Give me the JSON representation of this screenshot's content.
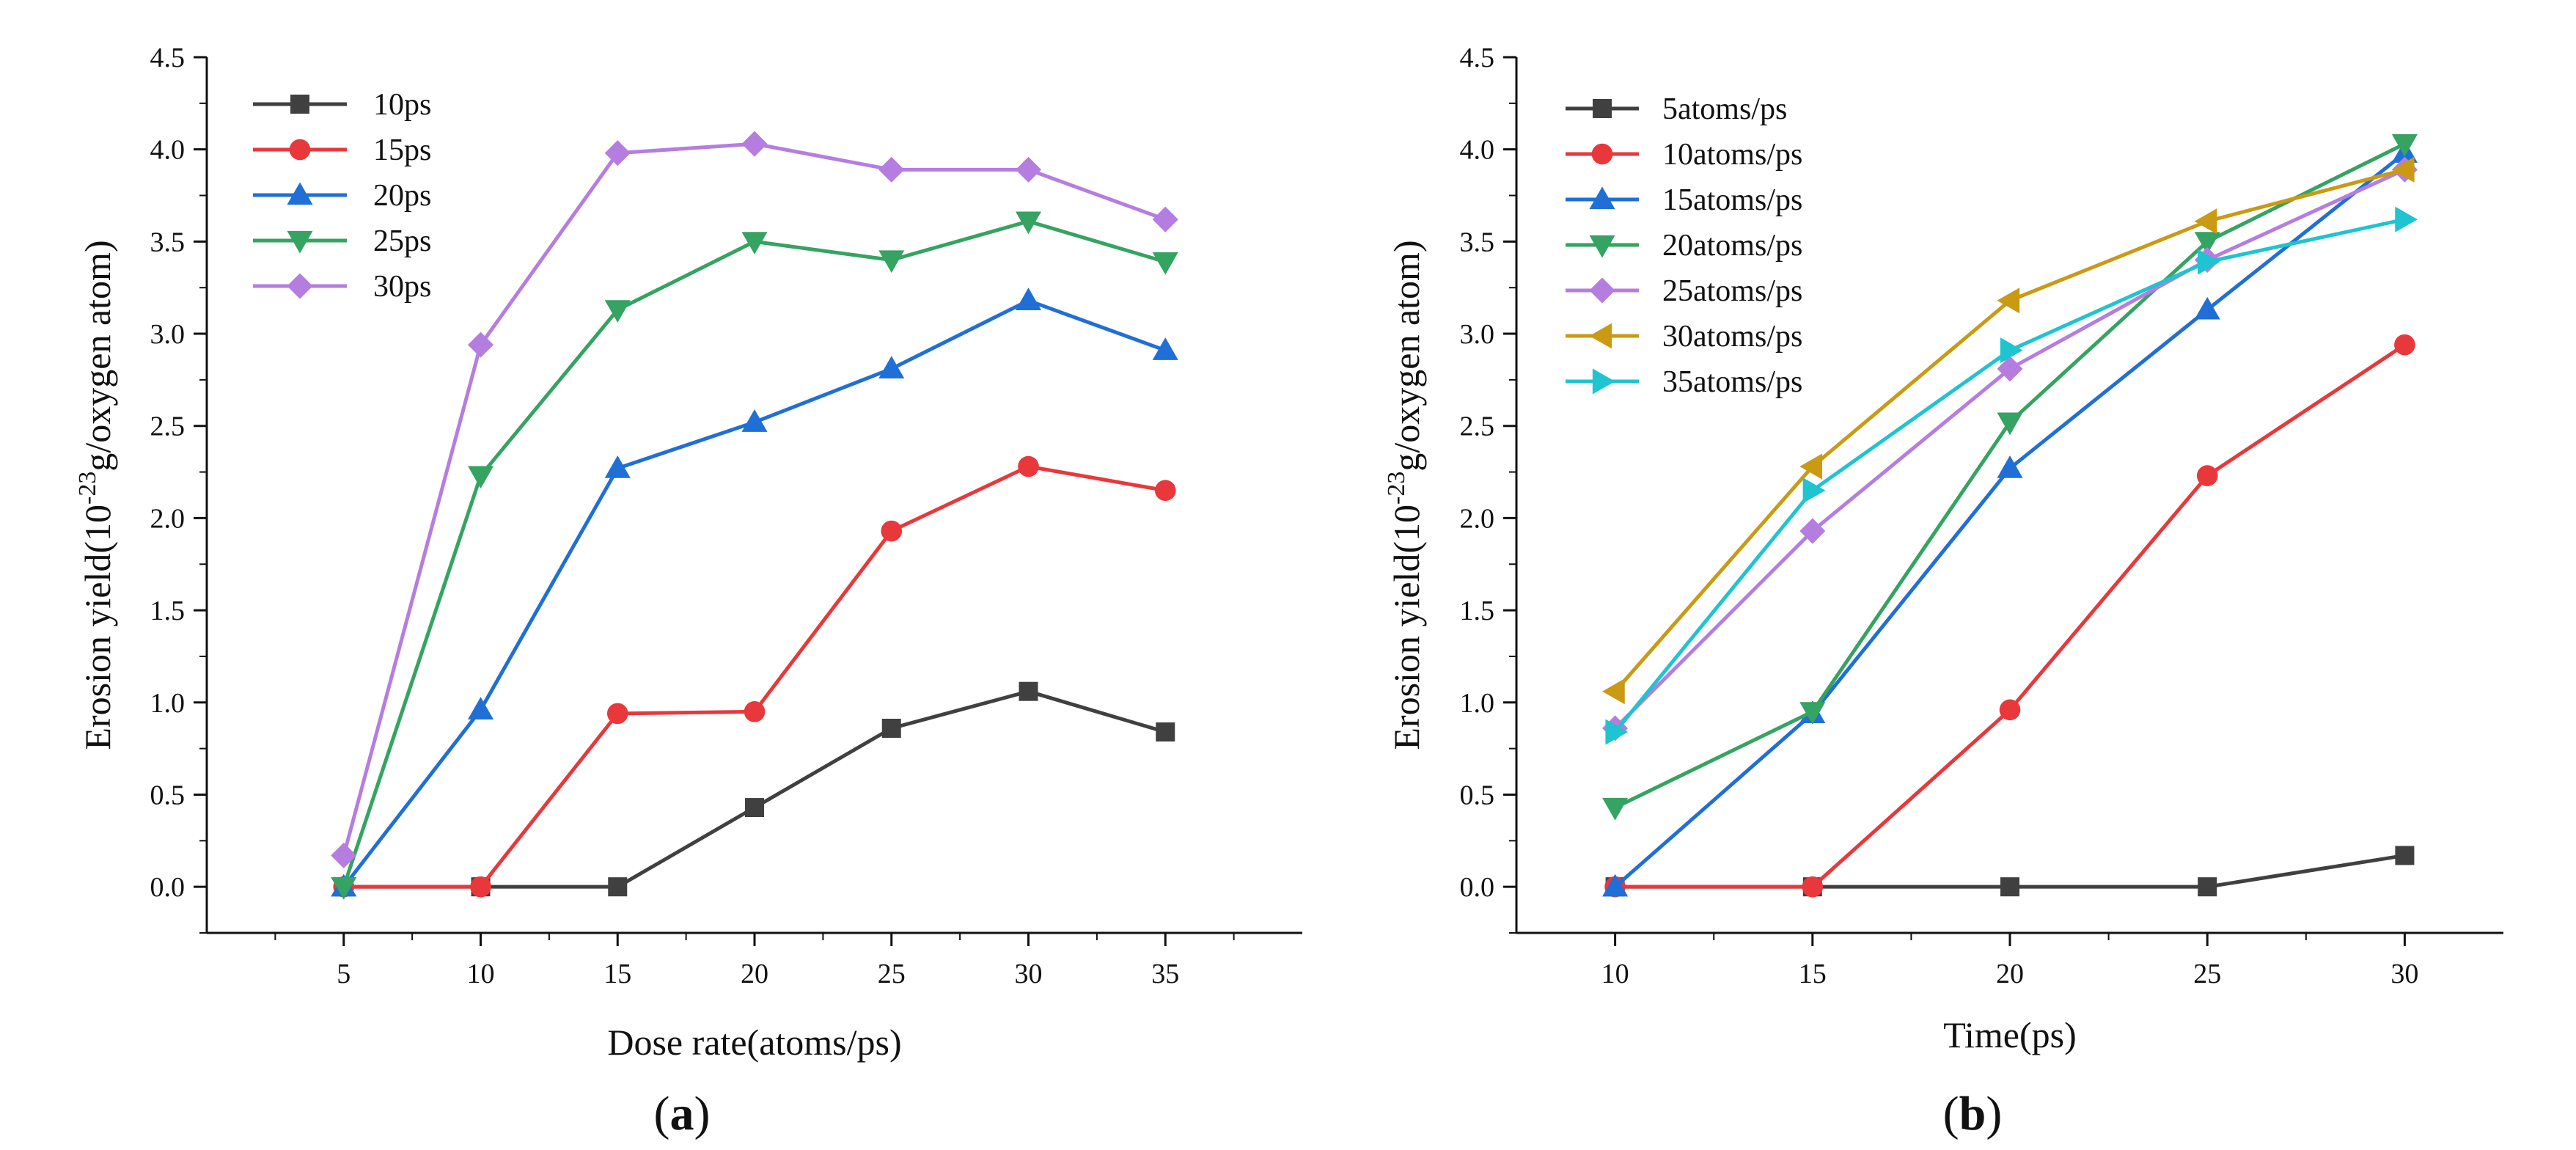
{
  "chart_data": [
    {
      "type": "line",
      "panel_label": "a",
      "xlabel": "Dose rate(atoms/ps)",
      "ylabel": {
        "prefix": "Erosion yield(10",
        "sup": "-23",
        "suffix": "g/oxygen atom)"
      },
      "xlim": [
        0,
        40
      ],
      "ylim": [
        -0.25,
        4.5
      ],
      "xticks": [
        5,
        10,
        15,
        20,
        25,
        30,
        35
      ],
      "xtick_labels": [
        "5",
        "10",
        "15",
        "20",
        "25",
        "30",
        "35"
      ],
      "yticks": [
        0.0,
        0.5,
        1.0,
        1.5,
        2.0,
        2.5,
        3.0,
        3.5,
        4.0,
        4.5
      ],
      "ytick_labels": [
        "0.0",
        "0.5",
        "1.0",
        "1.5",
        "2.0",
        "2.5",
        "3.0",
        "3.5",
        "4.0",
        "4.5"
      ],
      "legend_position": "top-left",
      "x": [
        5,
        10,
        15,
        20,
        25,
        30,
        35
      ],
      "series": [
        {
          "name": "10ps",
          "color": "#404040",
          "marker": "square",
          "values": [
            0.0,
            0.0,
            0.0,
            0.43,
            0.86,
            1.06,
            0.84
          ]
        },
        {
          "name": "15ps",
          "color": "#e8383b",
          "marker": "circle",
          "values": [
            0.0,
            0.0,
            0.94,
            0.95,
            1.93,
            2.28,
            2.15
          ]
        },
        {
          "name": "20ps",
          "color": "#1f6fd6",
          "marker": "triangle-up",
          "values": [
            0.0,
            0.96,
            2.27,
            2.52,
            2.81,
            3.18,
            2.91
          ]
        },
        {
          "name": "25ps",
          "color": "#35a361",
          "marker": "triangle-down",
          "values": [
            0.0,
            2.23,
            3.13,
            3.5,
            3.4,
            3.61,
            3.39
          ]
        },
        {
          "name": "30ps",
          "color": "#b57de0",
          "marker": "diamond",
          "values": [
            0.17,
            2.94,
            3.98,
            4.03,
            3.89,
            3.89,
            3.62
          ]
        }
      ]
    },
    {
      "type": "line",
      "panel_label": "b",
      "xlabel": "Time(ps)",
      "ylabel": {
        "prefix": "Erosion yield(10",
        "sup": "-23",
        "suffix": "g/oxygen atom)"
      },
      "xlim": [
        7.5,
        32.5
      ],
      "ylim": [
        -0.25,
        4.5
      ],
      "xticks": [
        10,
        15,
        20,
        25,
        30
      ],
      "xtick_labels": [
        "10",
        "15",
        "20",
        "25",
        "30"
      ],
      "yticks": [
        0.0,
        0.5,
        1.0,
        1.5,
        2.0,
        2.5,
        3.0,
        3.5,
        4.0,
        4.5
      ],
      "ytick_labels": [
        "0.0",
        "0.5",
        "1.0",
        "1.5",
        "2.0",
        "2.5",
        "3.0",
        "3.5",
        "4.0",
        "4.5"
      ],
      "legend_position": "top-left",
      "x": [
        10,
        15,
        20,
        25,
        30
      ],
      "series": [
        {
          "name": "5atoms/ps",
          "color": "#404040",
          "marker": "square",
          "values": [
            0.0,
            0.0,
            0.0,
            0.0,
            0.17
          ]
        },
        {
          "name": "10atoms/ps",
          "color": "#e8383b",
          "marker": "circle",
          "values": [
            0.0,
            0.0,
            0.96,
            2.23,
            2.94
          ]
        },
        {
          "name": "15atoms/ps",
          "color": "#1f6fd6",
          "marker": "triangle-up",
          "values": [
            0.0,
            0.94,
            2.27,
            3.13,
            3.98
          ]
        },
        {
          "name": "20atoms/ps",
          "color": "#35a361",
          "marker": "triangle-down",
          "values": [
            0.43,
            0.95,
            2.52,
            3.5,
            4.03
          ]
        },
        {
          "name": "25atoms/ps",
          "color": "#b57de0",
          "marker": "diamond",
          "values": [
            0.86,
            1.93,
            2.81,
            3.4,
            3.89
          ]
        },
        {
          "name": "30atoms/ps",
          "color": "#c99a12",
          "marker": "triangle-left",
          "values": [
            1.06,
            2.28,
            3.18,
            3.61,
            3.89
          ]
        },
        {
          "name": "35atoms/ps",
          "color": "#1ec4cf",
          "marker": "triangle-right",
          "values": [
            0.84,
            2.15,
            2.91,
            3.39,
            3.62
          ]
        }
      ]
    }
  ]
}
